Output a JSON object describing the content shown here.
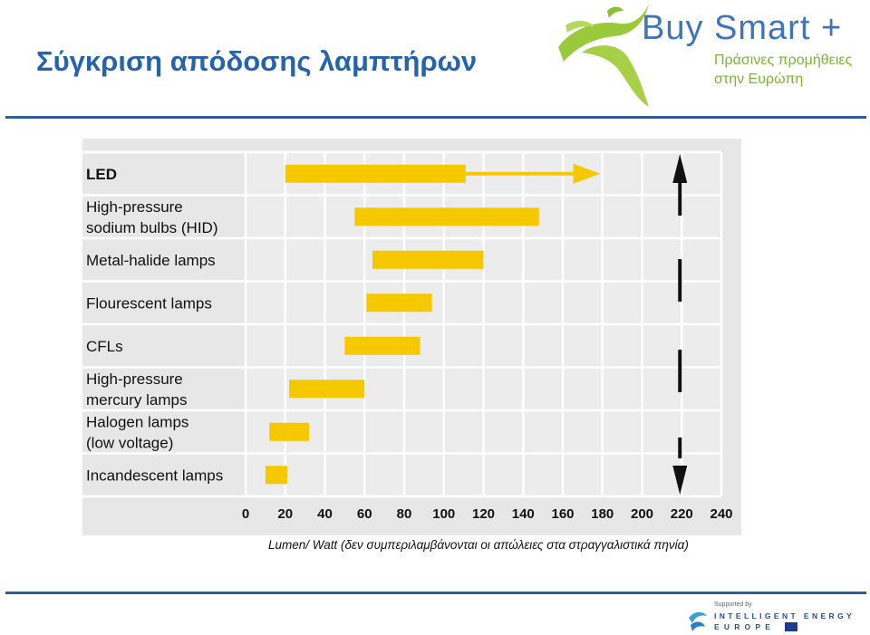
{
  "slide": {
    "title": "Σύγκριση απόδοσης λαμπτήρων",
    "caption": "Lumen/ Watt (δεν συμπεριλαμβάνονται οι απώλειες στα στραγγαλιστικά πηνία)"
  },
  "logo": {
    "brand": "Buy Smart +",
    "tagline_line1": "Πράσινες προμήθειες",
    "tagline_line2": "στην Ευρώπη"
  },
  "footer": {
    "supported_by": "Supported by",
    "program_line1": "INTELLIGENT ENERGY",
    "program_line2": "EUROPE"
  },
  "colors": {
    "bar": "#f6c800",
    "arrow": "#111111",
    "title": "#2563ad",
    "rule": "#2f5d95",
    "chart_bg": "#e7e7e7"
  },
  "chart_data": {
    "type": "bar",
    "orientation": "horizontal",
    "categories": [
      [
        "LED"
      ],
      [
        "High-pressure",
        "sodium bulbs (HID)"
      ],
      [
        "Metal-halide lamps"
      ],
      [
        "Flourescent lamps"
      ],
      [
        "CFLs"
      ],
      [
        "High-pressure",
        "mercury lamps"
      ],
      [
        "Halogen lamps",
        "(low voltage)"
      ],
      [
        "Incandescent lamps"
      ]
    ],
    "ranges": [
      [
        20,
        111
      ],
      [
        55,
        148
      ],
      [
        64,
        120
      ],
      [
        61,
        94
      ],
      [
        50,
        88
      ],
      [
        22,
        60
      ],
      [
        12,
        32
      ],
      [
        10,
        21
      ]
    ],
    "extension_arrow": {
      "category_index": 0,
      "from": 111,
      "to": 179
    },
    "x_ticks": [
      0,
      20,
      40,
      60,
      80,
      100,
      120,
      140,
      160,
      180,
      200,
      220,
      240
    ],
    "xlim": [
      0,
      240
    ],
    "grid": true,
    "efficiency_arrow_x": 220
  }
}
